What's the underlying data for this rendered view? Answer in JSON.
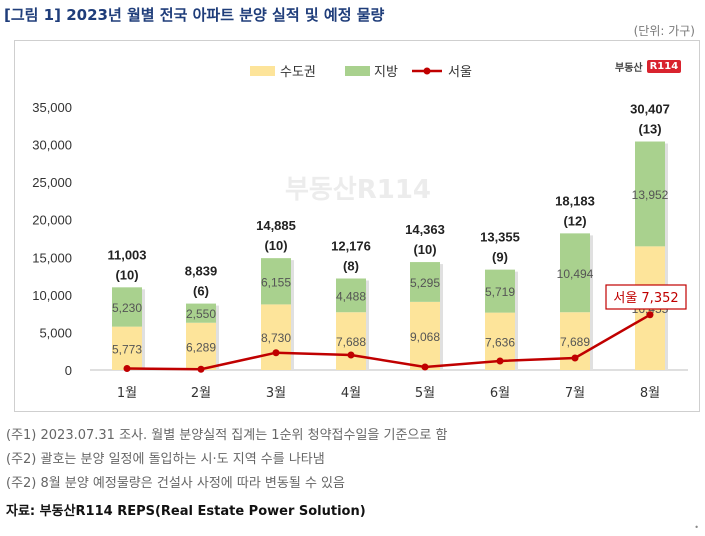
{
  "header": {
    "title": "[그림 1] 2023년 월별 전국 아파트 분양 실적 및 예정 물량",
    "unit": "(단위: 가구)"
  },
  "logo": {
    "text": "부동산",
    "badge": "R114"
  },
  "colors": {
    "capital": "#fde49a",
    "regional": "#a9d18e",
    "seoul": "#c00000"
  },
  "chart_data": {
    "type": "bar",
    "categories": [
      "1월",
      "2월",
      "3월",
      "4월",
      "5월",
      "6월",
      "7월",
      "8월"
    ],
    "series": [
      {
        "name": "수도권",
        "values": [
          5773,
          6289,
          8730,
          7688,
          9068,
          7636,
          7689,
          16455
        ]
      },
      {
        "name": "지방",
        "values": [
          5230,
          2550,
          6155,
          4488,
          5295,
          5719,
          10494,
          13952
        ]
      },
      {
        "name": "서울",
        "type": "line",
        "values": [
          200,
          100,
          2300,
          2000,
          400,
          1200,
          1600,
          7352
        ]
      }
    ],
    "totals": [
      "11,003",
      "8,839",
      "14,885",
      "12,176",
      "14,363",
      "13,355",
      "18,183",
      "30,407"
    ],
    "counts": [
      "(10)",
      "(6)",
      "(10)",
      "(8)",
      "(10)",
      "(9)",
      "(12)",
      "(13)"
    ],
    "seoul_callout": "서울 7,352",
    "yticks": [
      "0",
      "5,000",
      "10,000",
      "15,000",
      "20,000",
      "25,000",
      "30,000",
      "35,000"
    ],
    "ylim": [
      0,
      35000
    ],
    "legend": [
      "수도권",
      "지방",
      "서울"
    ],
    "legend_position": "top",
    "watermark": "부동산R114"
  },
  "notes": [
    "(주1) 2023.07.31 조사. 월별 분양실적 집계는 1순위 청약접수일을 기준으로 함",
    "(주2) 괄호는 분양 일정에 돌입하는 시·도 지역 수를 나타냄",
    "(주2) 8월 분양 예정물량은 건설사 사정에 따라 변동될 수 있음"
  ],
  "source": "자료: 부동산R114 REPS(Real Estate Power Solution)"
}
